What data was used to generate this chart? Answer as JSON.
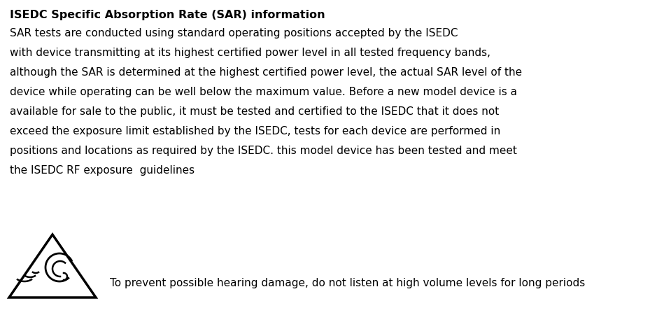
{
  "title": "ISEDC Specific Absorption Rate (SAR) information",
  "body_lines": [
    "SAR tests are conducted using standard operating positions accepted by the ISEDC",
    "with device transmitting at its highest certified power level in all tested frequency bands,",
    "although the SAR is determined at the highest certified power level, the actual SAR level of the",
    "device while operating can be well below the maximum value. Before a new model device is a",
    "available for sale to the public, it must be tested and certified to the ISEDC that it does not",
    "exceed the exposure limit established by the ISEDC, tests for each device are performed in",
    "positions and locations as required by the ISEDC. this model device has been tested and meet",
    "the ISEDC RF exposure  guidelines"
  ],
  "warning_text": "To prevent possible hearing damage, do not listen at high volume levels for long periods",
  "background_color": "#ffffff",
  "text_color": "#000000",
  "title_fontsize": 11.5,
  "body_fontsize": 11.0,
  "warning_fontsize": 11.0
}
